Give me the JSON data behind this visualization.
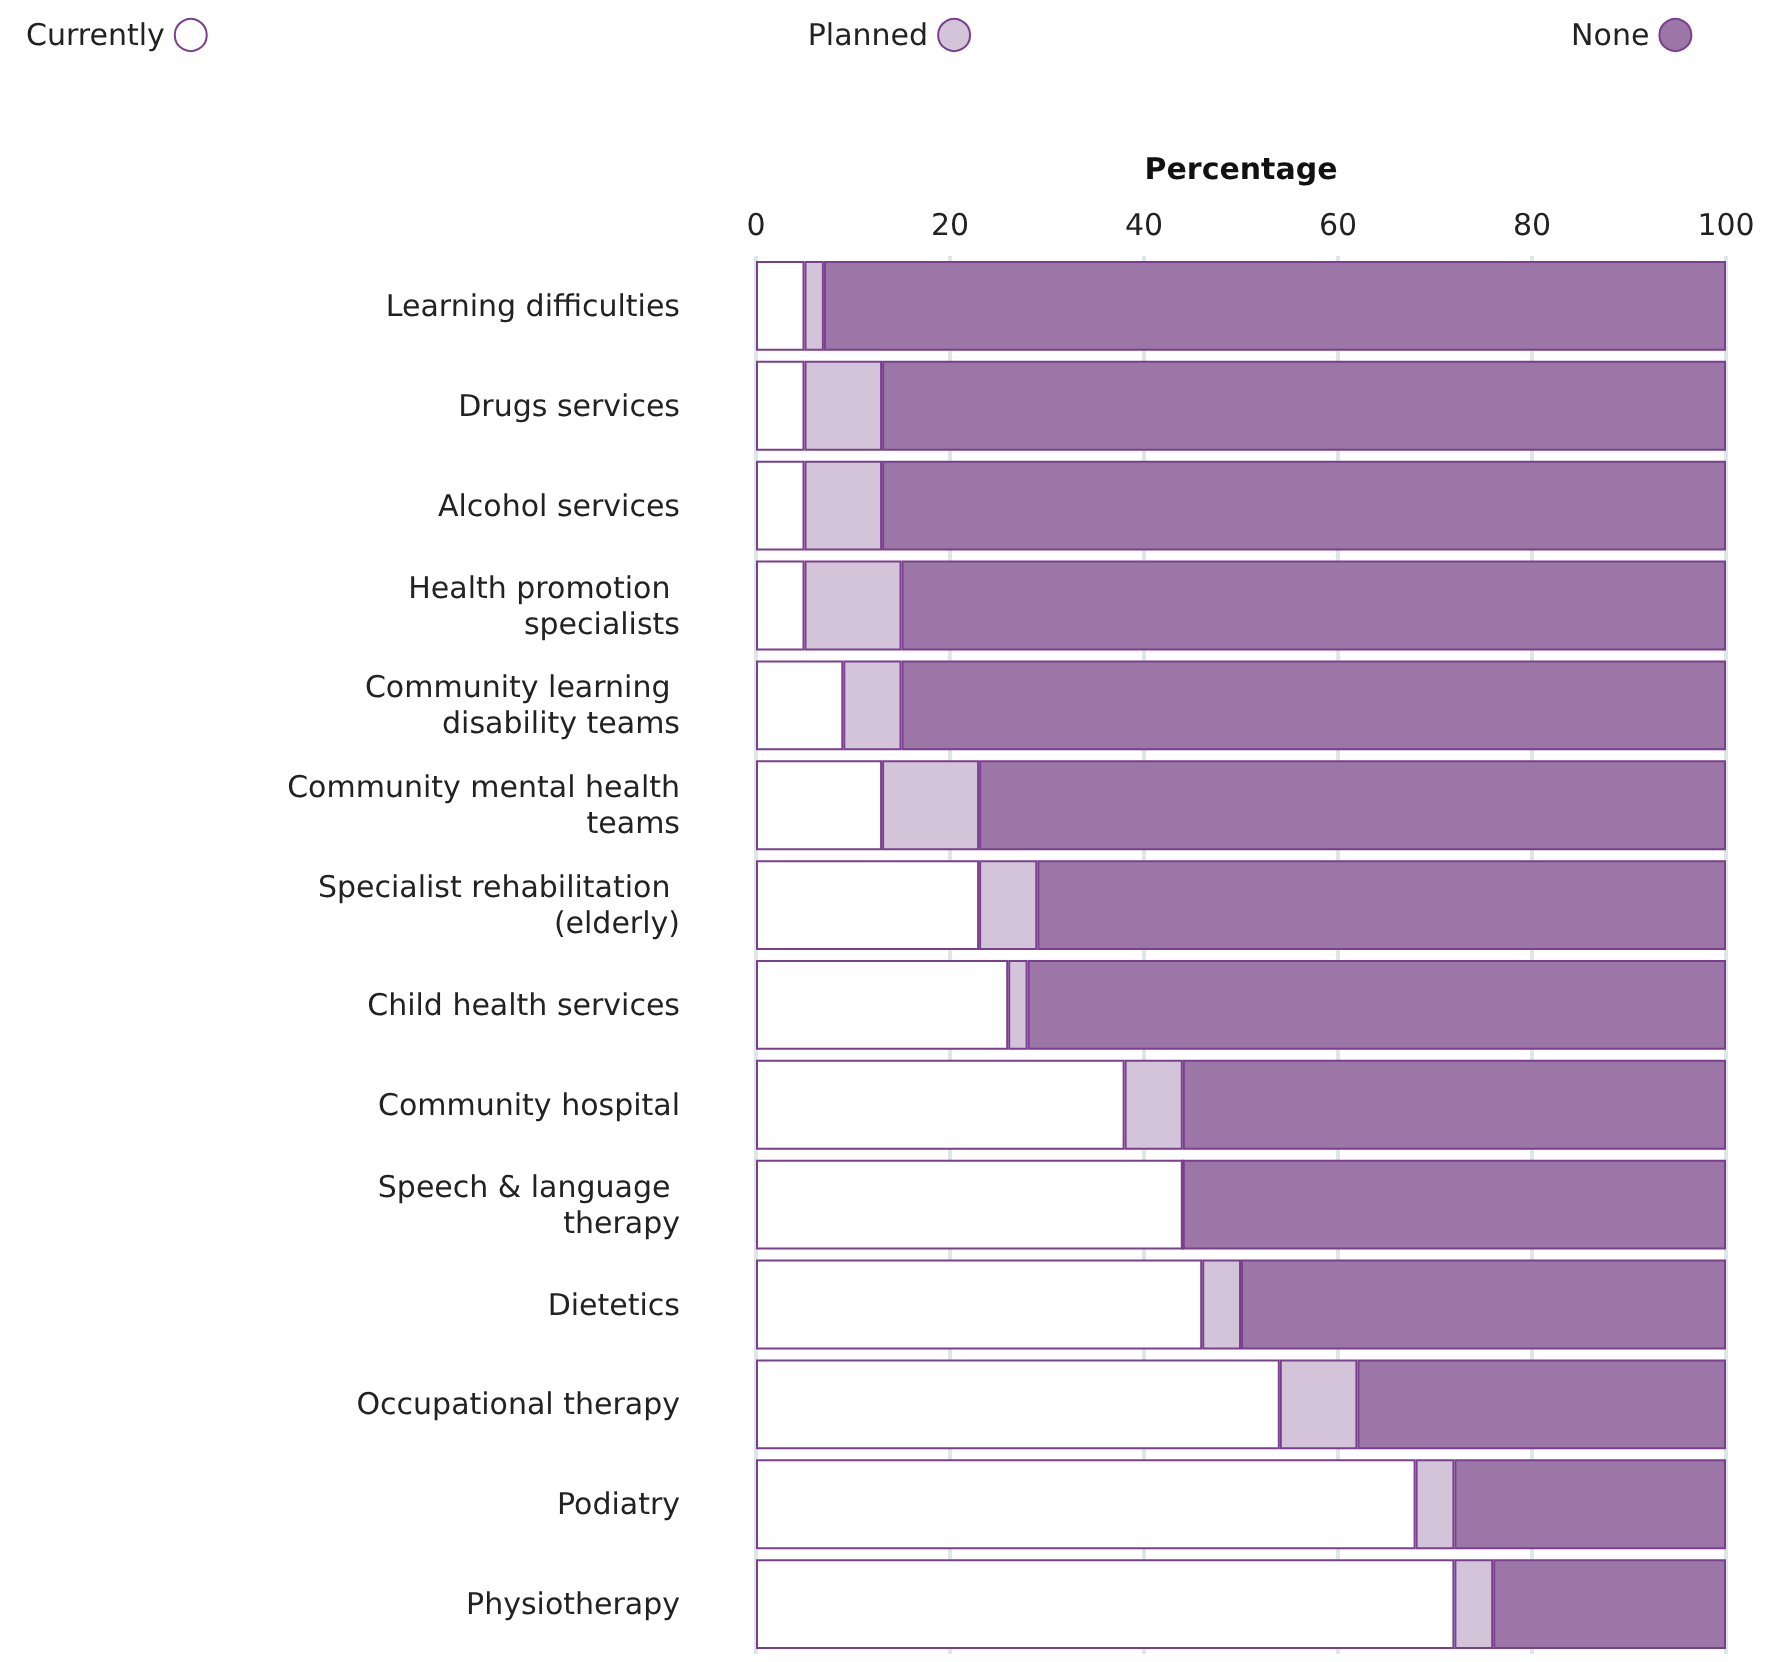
{
  "chart_data": {
    "type": "bar",
    "orientation": "horizontal",
    "stacked": true,
    "xlabel": "Percentage",
    "categories": [
      "Learning difficulties",
      "Drugs services",
      "Alcohol services",
      "Health promotion specialists",
      "Community learning disability teams",
      "Community mental health teams",
      "Specialist rehabilitation (elderly)",
      "Child health services",
      "Community hospital",
      "Speech & language therapy",
      "Dietetics",
      "Occupational therapy",
      "Podiatry",
      "Physiotherapy"
    ],
    "series": [
      {
        "name": "Currently",
        "color": "#ffffff",
        "values": [
          5,
          5,
          5,
          5,
          9,
          13,
          23,
          26,
          38,
          44,
          46,
          54,
          68,
          72
        ]
      },
      {
        "name": "Planned",
        "color": "#d4c4d9",
        "values": [
          2,
          8,
          8,
          10,
          6,
          10,
          6,
          2,
          6,
          0,
          4,
          8,
          4,
          4
        ]
      },
      {
        "name": "None",
        "color": "#9b76a6",
        "values": [
          93,
          87,
          87,
          85,
          85,
          77,
          71,
          72,
          56,
          56,
          50,
          38,
          28,
          24
        ]
      }
    ],
    "xlim": [
      0,
      100
    ],
    "xticks": [
      0,
      20,
      40,
      60,
      80,
      100
    ],
    "grid": "x",
    "legend": "top"
  }
}
